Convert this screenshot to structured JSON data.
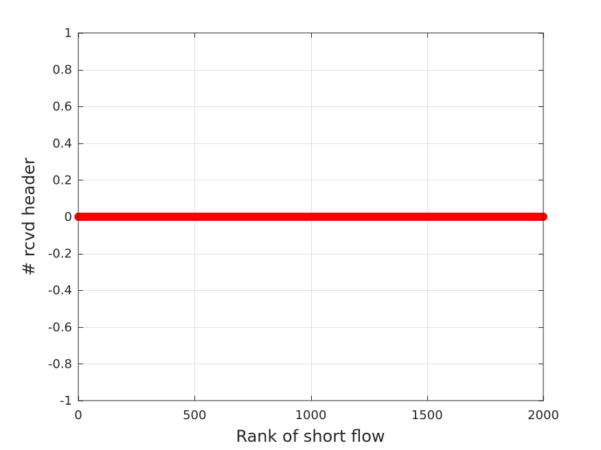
{
  "chart_data": {
    "type": "scatter",
    "title": "",
    "xlabel": "Rank of short flow",
    "ylabel": "# rcvd header",
    "xlim": [
      0,
      2000
    ],
    "ylim": [
      -1,
      1
    ],
    "xticks": [
      0,
      500,
      1000,
      1500,
      2000
    ],
    "yticks": [
      -1,
      -0.8,
      -0.6,
      -0.4,
      -0.2,
      0,
      0.2,
      0.4,
      0.6,
      0.8,
      1
    ],
    "xtick_labels": [
      "0",
      "500",
      "1000",
      "1500",
      "2000"
    ],
    "ytick_labels": [
      "-1",
      "-0.8",
      "-0.6",
      "-0.4",
      "-0.2",
      "0",
      "0.2",
      "0.4",
      "0.6",
      "0.8",
      "1"
    ],
    "grid": true,
    "series": [
      {
        "color": "#ff0000",
        "marker": "filled-circle",
        "x_start": 1,
        "x_end": 2000,
        "x_step": 1,
        "y_constant": 0
      }
    ]
  }
}
